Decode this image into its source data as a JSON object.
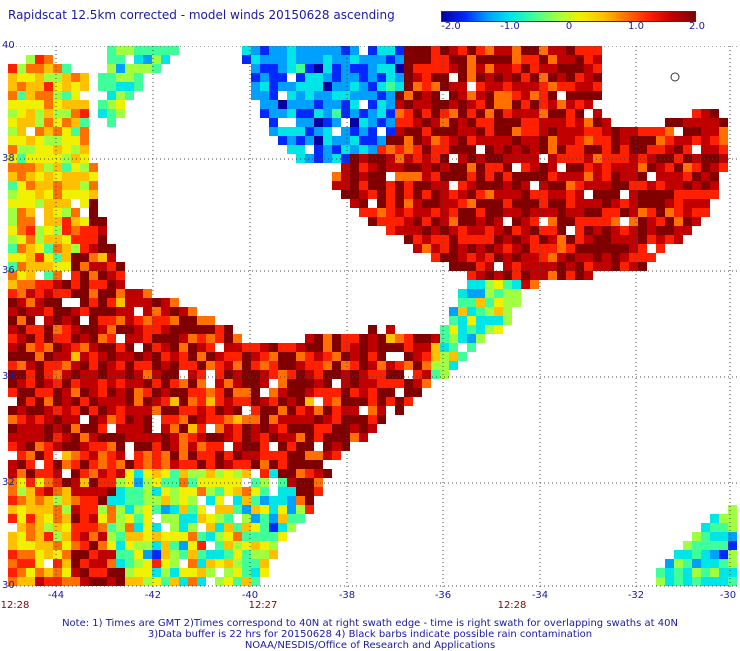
{
  "title": "Rapidscat 12.5km corrected - model winds 20150628 ascending",
  "colorbar": {
    "ticks": [
      "-2.0",
      "-1.0",
      "0",
      "1.0",
      "2.0"
    ],
    "colors": [
      "#0000a0",
      "#0028ff",
      "#00a0ff",
      "#00e6e6",
      "#40ff9a",
      "#a0ff40",
      "#f0f000",
      "#ffc000",
      "#ff7000",
      "#ff2000",
      "#c00000",
      "#800000"
    ]
  },
  "map": {
    "lat_labels": [
      "40",
      "38",
      "36",
      "34",
      "32",
      "30"
    ],
    "lon_labels": [
      "-44",
      "-42",
      "-40",
      "-38",
      "-36",
      "-34",
      "-32",
      "-30"
    ],
    "time_labels": [
      "12:28",
      "12:27",
      "12:28"
    ]
  },
  "notes": {
    "line1": "Note: 1) Times are GMT 2)Times correspond to 40N at right swath edge - time is right swath for overlapping swaths at 40N",
    "line2": "3)Data buffer is 22 hrs for 20150628 4) Black barbs indicate possible rain contamination",
    "line3": "NOAA/NESDIS/Office of Research and Applications"
  }
}
